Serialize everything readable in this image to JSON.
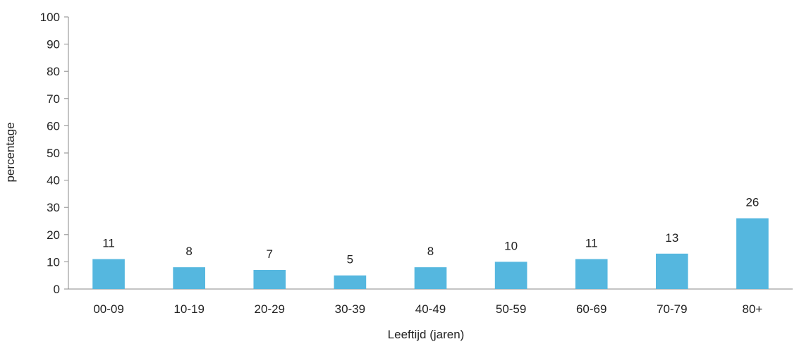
{
  "chart_data": {
    "type": "bar",
    "title": "",
    "xlabel": "Leeftijd (jaren)",
    "ylabel": "percentage",
    "categories": [
      "00-09",
      "10-19",
      "20-29",
      "30-39",
      "40-49",
      "50-59",
      "60-69",
      "70-79",
      "80+"
    ],
    "values": [
      11,
      8,
      7,
      5,
      8,
      10,
      11,
      13,
      26
    ],
    "ylim": [
      0,
      100
    ],
    "yticks": [
      0,
      10,
      20,
      30,
      40,
      50,
      60,
      70,
      80,
      90,
      100
    ],
    "grid": false,
    "legend": "none",
    "bar_color": "#55b7df",
    "axis_color": "#8a8a8a"
  }
}
